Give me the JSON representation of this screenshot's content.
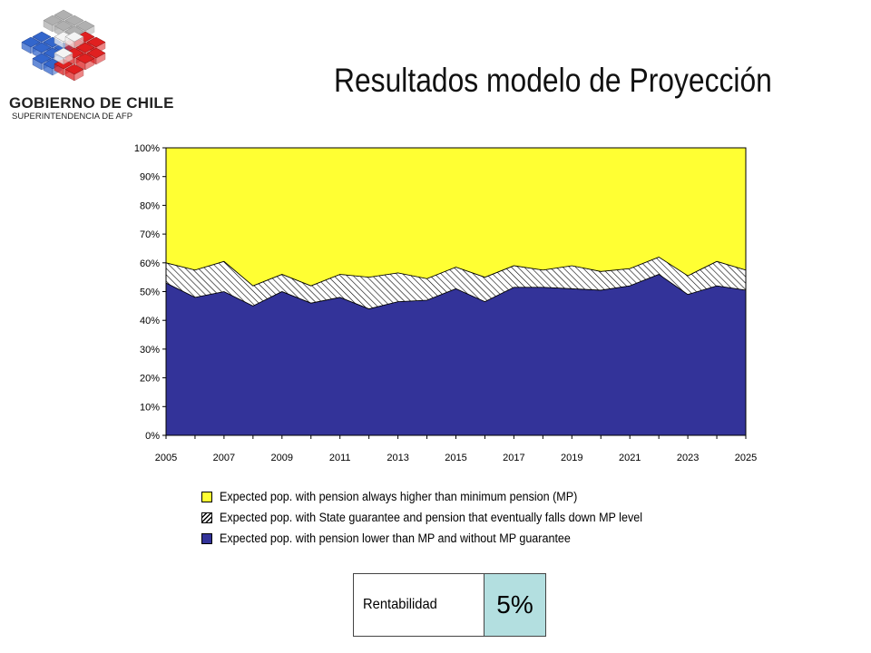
{
  "logo": {
    "title": "GOBIERNO DE CHILE",
    "subtitle": "SUPERINTENDENCIA DE AFP"
  },
  "slide": {
    "title": "Resultados modelo de Proyección"
  },
  "colors": {
    "higher": "#ffff33",
    "guarantee_hatch": "#ffffff",
    "lower": "#333399",
    "param_value_bg": "#b3dfe0"
  },
  "chart_data": {
    "type": "area",
    "stacked": "percent",
    "x": [
      2005,
      2006,
      2007,
      2008,
      2009,
      2010,
      2011,
      2012,
      2013,
      2014,
      2015,
      2016,
      2017,
      2018,
      2019,
      2020,
      2021,
      2022,
      2023,
      2024,
      2025
    ],
    "x_tick_labels": [
      "2005",
      "2007",
      "2009",
      "2011",
      "2013",
      "2015",
      "2017",
      "2019",
      "2021",
      "2023",
      "2025"
    ],
    "y_tick_labels": [
      "0%",
      "10%",
      "20%",
      "30%",
      "40%",
      "50%",
      "60%",
      "70%",
      "80%",
      "90%",
      "100%"
    ],
    "ylim": [
      0,
      100
    ],
    "grid": false,
    "legend_position": "bottom",
    "series": [
      {
        "name": "Expected pop. with pension lower than MP and without MP guarantee",
        "values": [
          53,
          48,
          50,
          45,
          50,
          46,
          48,
          44,
          46.5,
          47,
          51,
          46.5,
          51.5,
          51.5,
          51,
          50.5,
          52,
          56,
          49,
          52,
          50.5
        ]
      },
      {
        "name": "Expected pop. with State guarantee and pension that eventually falls down MP level",
        "values": [
          7,
          9.5,
          10.5,
          7,
          6,
          6,
          8,
          11,
          10,
          7.5,
          7.5,
          8.5,
          7.5,
          6,
          8,
          6.5,
          6,
          6,
          6.5,
          8.5,
          7
        ]
      },
      {
        "name": "Expected pop. with pension always higher than minimum pension (MP)",
        "values": [
          40,
          42.5,
          39.5,
          48,
          44,
          48,
          44,
          45,
          43.5,
          45.5,
          41.5,
          45,
          41,
          42.5,
          41,
          43,
          42,
          38,
          44.5,
          39.5,
          42.5
        ]
      }
    ],
    "legend_order": [
      2,
      1,
      0
    ]
  },
  "parameter": {
    "label": "Rentabilidad",
    "value": "5%"
  }
}
